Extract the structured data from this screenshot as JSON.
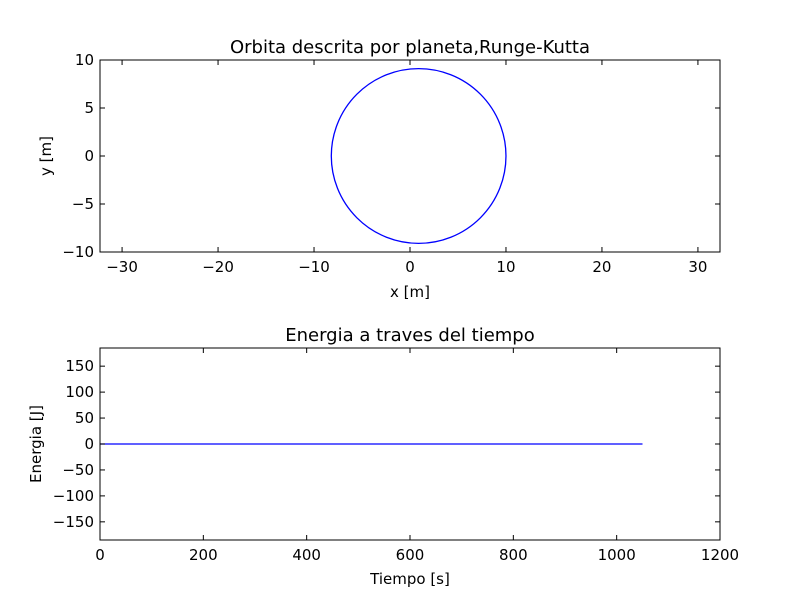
{
  "figure": {
    "background": "#ffffff",
    "line_color": "#0000ff"
  },
  "chart_data": [
    {
      "type": "line",
      "title": "Orbita descrita por planeta,Runge-Kutta",
      "xlabel": "x [m]",
      "ylabel": "y [m]",
      "xlim": [
        -32.3,
        32.3
      ],
      "ylim": [
        -10,
        10
      ],
      "xticks": [
        -30,
        -20,
        -10,
        0,
        10,
        20,
        30
      ],
      "yticks": [
        -10,
        -5,
        0,
        5,
        10
      ],
      "xtick_labels": [
        "−30",
        "−20",
        "−10",
        "0",
        "10",
        "20",
        "30"
      ],
      "ytick_labels": [
        "−10",
        "−5",
        "0",
        "5",
        "10"
      ],
      "grid": false,
      "series": [
        {
          "color": "#0000ff",
          "orbit": {
            "center_x": 0.9,
            "center_y": 0.0,
            "radius_x": 9.1,
            "radius_y": 9.1
          }
        }
      ]
    },
    {
      "type": "line",
      "title": "Energia a traves del tiempo",
      "xlabel": "Tiempo [s]",
      "ylabel": "Energia [J]",
      "xlim": [
        0,
        1200
      ],
      "ylim": [
        -185,
        185
      ],
      "xticks": [
        0,
        200,
        400,
        600,
        800,
        1000,
        1200
      ],
      "yticks": [
        -150,
        -100,
        -50,
        0,
        50,
        100,
        150
      ],
      "xtick_labels": [
        "0",
        "200",
        "400",
        "600",
        "800",
        "1000",
        "1200"
      ],
      "ytick_labels": [
        "−150",
        "−100",
        "−50",
        "0",
        "50",
        "100",
        "150"
      ],
      "grid": false,
      "series": [
        {
          "color": "#0000ff",
          "x": [
            0,
            1050
          ],
          "y": [
            0,
            0
          ]
        }
      ]
    }
  ]
}
